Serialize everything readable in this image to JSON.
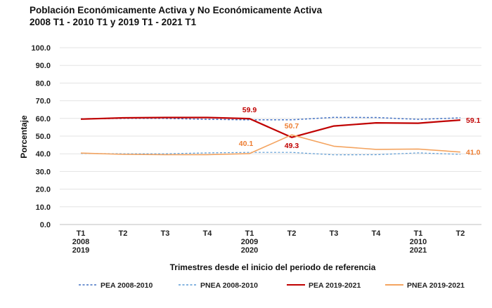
{
  "chart_data": {
    "type": "line",
    "title": [
      "Población Económicamente Activa y No Económicamente Activa",
      "2008 T1 - 2010 T1 y 2019 T1 - 2021 T1"
    ],
    "xlabel": "Trimestres desde el inicio del periodo de referencia",
    "ylabel": "Porcentaje",
    "ylim": [
      0,
      100
    ],
    "yticks": [
      "0.0",
      "10.0",
      "20.0",
      "30.0",
      "40.0",
      "50.0",
      "60.0",
      "70.0",
      "80.0",
      "90.0",
      "100.0"
    ],
    "categories": [
      [
        "T1",
        "2008",
        "2019"
      ],
      [
        "T2"
      ],
      [
        "T3"
      ],
      [
        "T4"
      ],
      [
        "T1",
        "2009",
        "2020"
      ],
      [
        "T2"
      ],
      [
        "T3"
      ],
      [
        "T4"
      ],
      [
        "T1",
        "2010",
        "2021"
      ],
      [
        "T2"
      ]
    ],
    "series": [
      {
        "name": "PEA 2008-2010",
        "color": "#4472c4",
        "dash": true,
        "width": 1.5,
        "values": [
          59.8,
          60.0,
          60.0,
          59.5,
          59.2,
          59.2,
          60.6,
          60.5,
          59.5,
          60.3
        ]
      },
      {
        "name": "PNEA 2008-2010",
        "color": "#5b9bd5",
        "dash": true,
        "width": 1.2,
        "values": [
          40.2,
          40.0,
          40.0,
          40.5,
          40.8,
          40.8,
          39.4,
          39.5,
          40.5,
          39.7
        ]
      },
      {
        "name": "PEA 2019-2021",
        "color": "#c00000",
        "dash": false,
        "width": 2.2,
        "values": [
          59.6,
          60.3,
          60.5,
          60.5,
          59.9,
          49.3,
          55.7,
          57.5,
          57.3,
          59.1
        ]
      },
      {
        "name": "PNEA 2019-2021",
        "color": "#f4a460",
        "dash": false,
        "width": 1.6,
        "values": [
          40.4,
          39.7,
          39.5,
          39.5,
          40.1,
          50.7,
          44.3,
          42.5,
          42.7,
          41.0
        ]
      }
    ],
    "data_labels": [
      {
        "series": 2,
        "index": 4,
        "text": "59.9",
        "color": "#c00000",
        "pos": "above"
      },
      {
        "series": 2,
        "index": 5,
        "text": "49.3",
        "color": "#c00000",
        "pos": "below"
      },
      {
        "series": 2,
        "index": 9,
        "text": "59.1",
        "color": "#c00000",
        "pos": "right"
      },
      {
        "series": 3,
        "index": 4,
        "text": "40.1",
        "color": "#ed7d31",
        "pos": "above-left"
      },
      {
        "series": 3,
        "index": 5,
        "text": "50.7",
        "color": "#ed7d31",
        "pos": "above"
      },
      {
        "series": 3,
        "index": 9,
        "text": "41.0",
        "color": "#ed7d31",
        "pos": "right"
      }
    ],
    "legend_position": "bottom"
  }
}
